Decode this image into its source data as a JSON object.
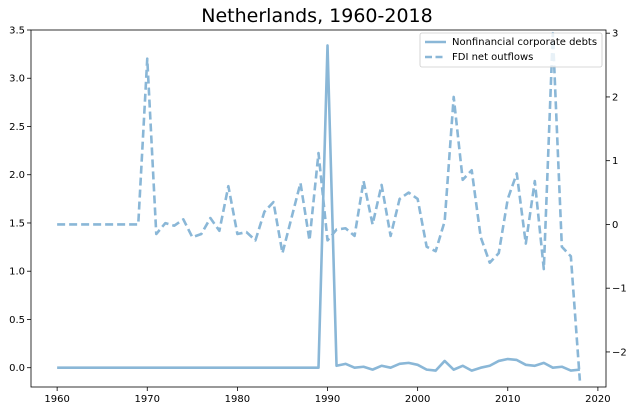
{
  "chart_data": {
    "type": "line",
    "title": "Netherlands, 1960-2018",
    "xlabel": "",
    "ylabel_left": "",
    "ylabel_right": "",
    "xlim": [
      1957.1,
      2020.9
    ],
    "ylim_left": [
      -0.2,
      3.5
    ],
    "ylim_right": [
      -2.55,
      3.05
    ],
    "x_ticks": [
      1960,
      1970,
      1980,
      1990,
      2000,
      2010,
      2020
    ],
    "y_left_ticks": [
      "0.0",
      "0.5",
      "1.0",
      "1.5",
      "2.0",
      "2.5",
      "3.0",
      "3.5"
    ],
    "y_right_ticks": [
      "−2",
      "−1",
      "0",
      "1",
      "2",
      "3"
    ],
    "y_right_tick_values": [
      -2,
      -1,
      0,
      1,
      2,
      3
    ],
    "y_left_tick_values": [
      0,
      0.5,
      1.0,
      1.5,
      2.0,
      2.5,
      3.0,
      3.5
    ],
    "grid": false,
    "legend_position": "top-right",
    "color": "#8ab7d7",
    "x": [
      1960,
      1961,
      1962,
      1963,
      1964,
      1965,
      1966,
      1967,
      1968,
      1969,
      1970,
      1971,
      1972,
      1973,
      1974,
      1975,
      1976,
      1977,
      1978,
      1979,
      1980,
      1981,
      1982,
      1983,
      1984,
      1985,
      1986,
      1987,
      1988,
      1989,
      1990,
      1991,
      1992,
      1993,
      1994,
      1995,
      1996,
      1997,
      1998,
      1999,
      2000,
      2001,
      2002,
      2003,
      2004,
      2005,
      2006,
      2007,
      2008,
      2009,
      2010,
      2011,
      2012,
      2013,
      2014,
      2015,
      2016,
      2017,
      2018
    ],
    "series": [
      {
        "name": "Nonfinancial corporate debts",
        "axis": "left",
        "style": "solid",
        "values": [
          0,
          0,
          0,
          0,
          0,
          0,
          0,
          0,
          0,
          0,
          0,
          0,
          0,
          0,
          0,
          0,
          0,
          0,
          0,
          0,
          0,
          0,
          0,
          0,
          0,
          0,
          0,
          0,
          0,
          0,
          3.34,
          0.02,
          0.04,
          0.0,
          0.01,
          -0.02,
          0.02,
          0.0,
          0.04,
          0.05,
          0.03,
          -0.02,
          -0.03,
          0.07,
          -0.02,
          0.02,
          -0.03,
          0.0,
          0.02,
          0.07,
          0.09,
          0.08,
          0.03,
          0.02,
          0.05,
          0.0,
          0.01,
          -0.03,
          -0.02
        ]
      },
      {
        "name": "FDI net outflows",
        "axis": "right",
        "style": "dashed",
        "values": [
          0,
          0,
          0,
          0,
          0,
          0,
          0,
          0,
          0,
          0,
          2.6,
          -0.15,
          0.02,
          -0.02,
          0.08,
          -0.2,
          -0.15,
          0.1,
          -0.1,
          0.6,
          -0.15,
          -0.12,
          -0.25,
          0.2,
          0.35,
          -0.45,
          0.1,
          0.65,
          -0.25,
          1.12,
          -0.25,
          -0.08,
          -0.06,
          -0.18,
          0.68,
          0.0,
          0.62,
          -0.18,
          0.4,
          0.5,
          0.4,
          -0.35,
          -0.42,
          0.05,
          2.0,
          0.7,
          0.85,
          -0.2,
          -0.6,
          -0.45,
          0.4,
          0.8,
          -0.3,
          0.68,
          -0.7,
          3.0,
          -0.35,
          -0.5,
          -2.45
        ]
      }
    ]
  }
}
